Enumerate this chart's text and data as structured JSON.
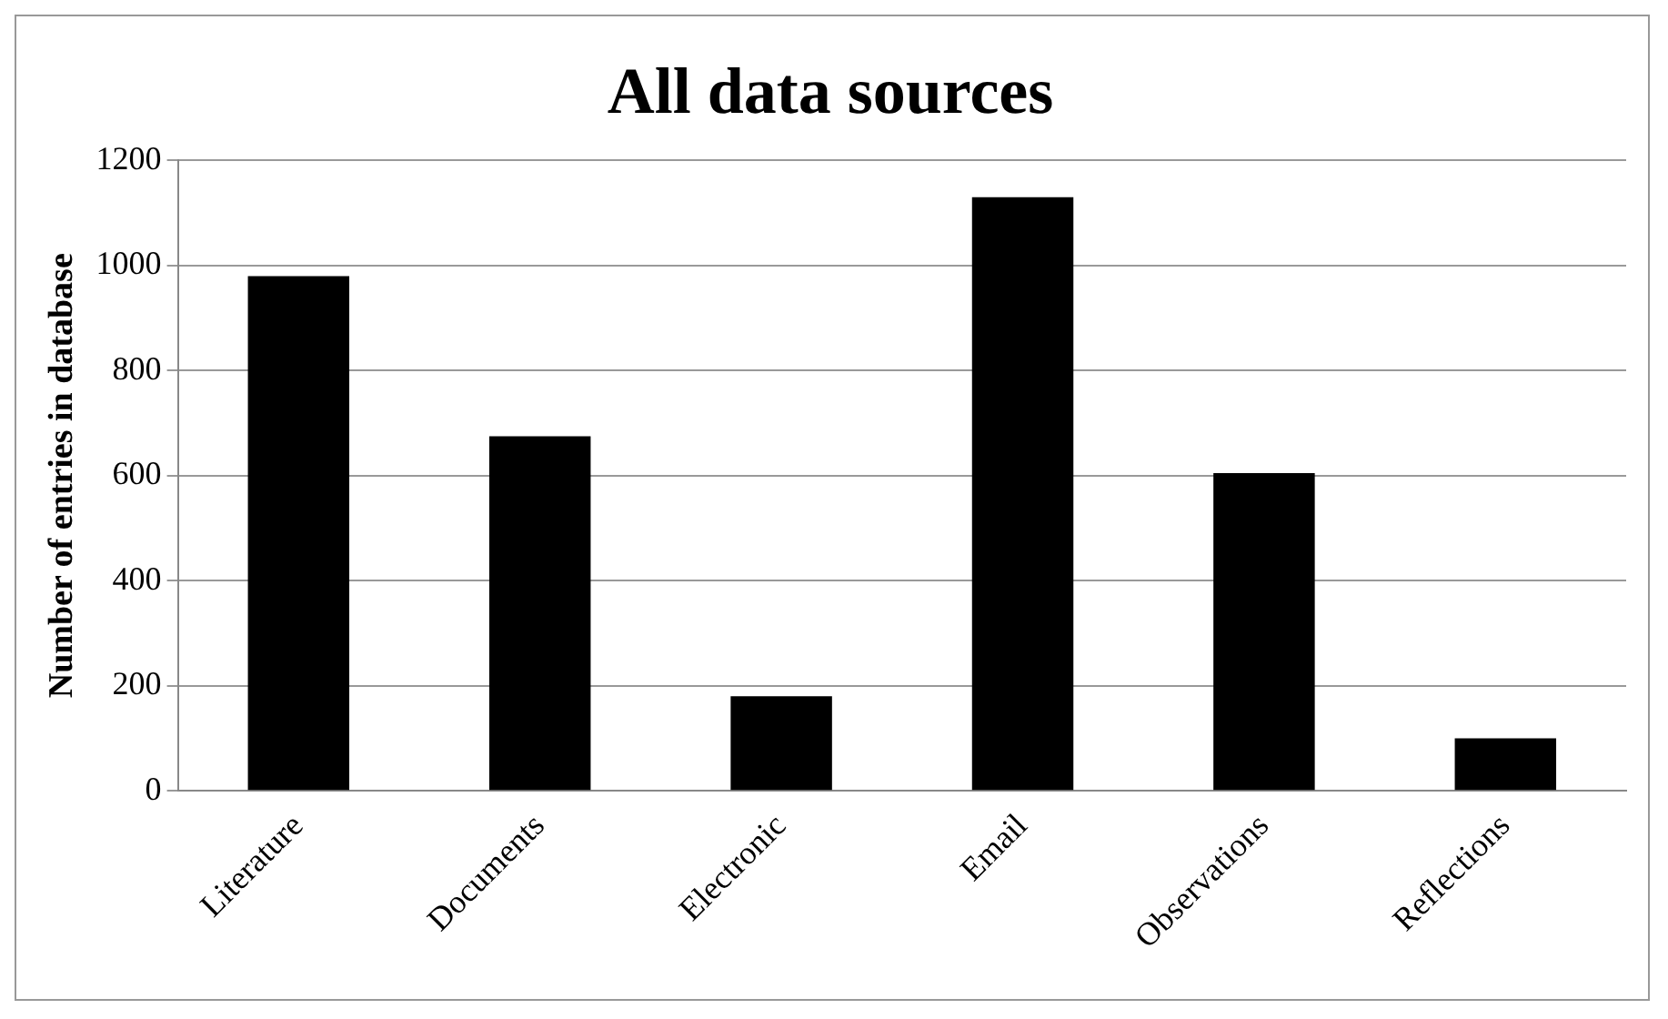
{
  "chart_data": {
    "type": "bar",
    "title": "All data sources",
    "ylabel": "Number of entries in database",
    "categories": [
      "Literature",
      "Documents",
      "Electronic",
      "Email",
      "Observations",
      "Reflections"
    ],
    "values": [
      980,
      675,
      180,
      1130,
      605,
      100
    ],
    "color": "#000000",
    "ylim": [
      0,
      1200
    ],
    "yticks": [
      0,
      200,
      400,
      600,
      800,
      1000,
      1200
    ],
    "grid": "y"
  }
}
